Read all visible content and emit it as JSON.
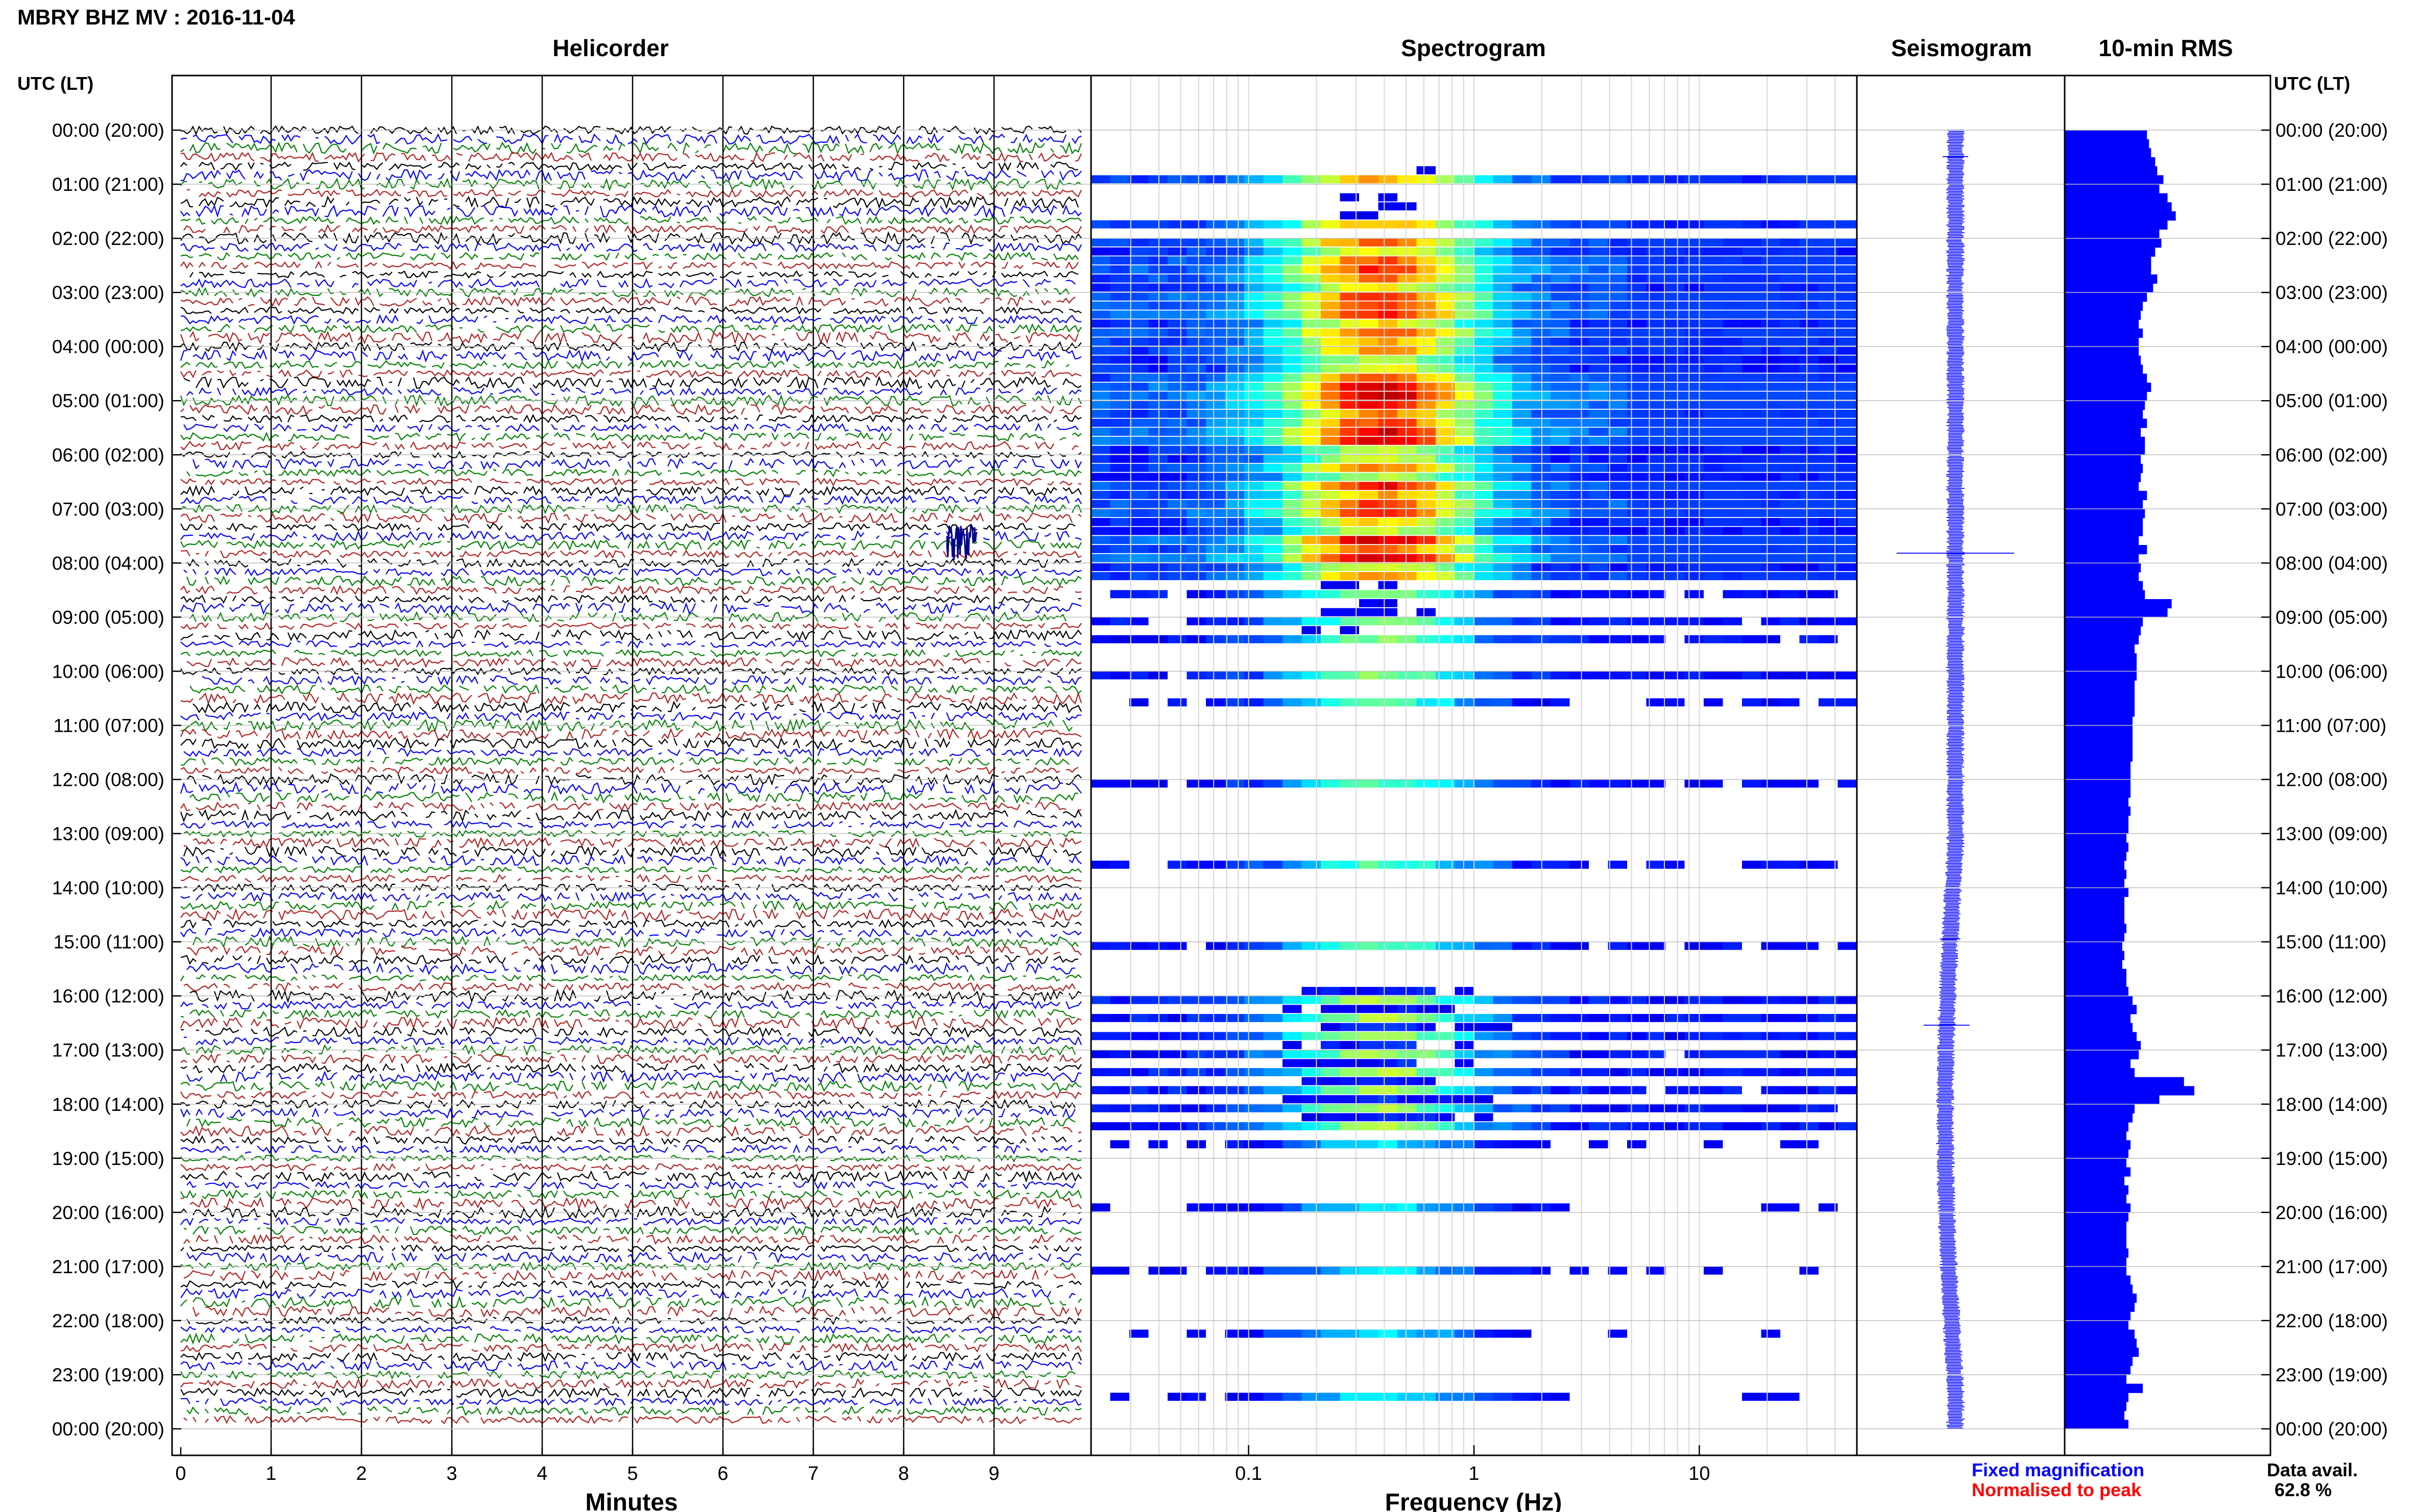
{
  "header": {
    "title": "MBRY BHZ MV : 2016-11-04"
  },
  "axes": {
    "left_header": "UTC (LT)",
    "right_header": "UTC (LT)"
  },
  "panels": {
    "helicorder": {
      "title": "Helicorder",
      "xlabel": "Minutes"
    },
    "spectrogram": {
      "title": "Spectrogram",
      "xlabel": "Frequency (Hz)"
    },
    "seismogram": {
      "title": "Seismogram"
    },
    "rms": {
      "title": "10-min RMS"
    }
  },
  "legend": {
    "fixed": "Fixed magnification",
    "normalised": "Normalised to peak",
    "fixed_color": "#0000ff",
    "normalised_color": "#ff0000"
  },
  "data_avail": {
    "label": "Data avail.",
    "value": "62.8 %"
  },
  "colors": {
    "trace_cycle": [
      "#000000",
      "#0000ff",
      "#008000",
      "#b22222"
    ],
    "rms_bar": "#0000ff"
  },
  "chart_data": [
    {
      "type": "line",
      "panel": "helicorder",
      "title": "Helicorder",
      "xlabel": "Minutes",
      "x_ticks": [
        0,
        1,
        2,
        3,
        4,
        5,
        6,
        7,
        8,
        9
      ],
      "xlim": [
        0,
        10
      ],
      "time_ticks": [
        "00:00 (20:00)",
        "01:00 (21:00)",
        "02:00 (22:00)",
        "03:00 (23:00)",
        "04:00 (00:00)",
        "05:00 (01:00)",
        "06:00 (02:00)",
        "07:00 (03:00)",
        "08:00 (04:00)",
        "09:00 (05:00)",
        "10:00 (06:00)",
        "11:00 (07:00)",
        "12:00 (08:00)",
        "13:00 (09:00)",
        "14:00 (10:00)",
        "15:00 (11:00)",
        "16:00 (12:00)",
        "17:00 (13:00)",
        "18:00 (14:00)",
        "19:00 (15:00)",
        "20:00 (16:00)",
        "21:00 (17:00)",
        "22:00 (18:00)",
        "23:00 (19:00)",
        "00:00 (20:00)"
      ],
      "rows": 144,
      "minutes_per_row": 10
    },
    {
      "type": "heatmap",
      "panel": "spectrogram",
      "title": "Spectrogram",
      "xlabel": "Frequency (Hz)",
      "x_scale": "log",
      "xlim": [
        0.02,
        50
      ],
      "x_ticks": [
        0.1,
        1,
        10
      ],
      "x_tick_labels": [
        "0.1",
        "1",
        "10"
      ]
    },
    {
      "type": "line",
      "panel": "seismogram",
      "title": "Seismogram"
    },
    {
      "type": "bar",
      "panel": "rms",
      "title": "10-min RMS",
      "orientation": "horizontal",
      "interval_minutes": 10,
      "values": [
        0.4,
        0.41,
        0.42,
        0.44,
        0.45,
        0.48,
        0.46,
        0.5,
        0.52,
        0.54,
        0.5,
        0.46,
        0.47,
        0.44,
        0.42,
        0.42,
        0.45,
        0.43,
        0.4,
        0.38,
        0.37,
        0.36,
        0.38,
        0.36,
        0.36,
        0.37,
        0.38,
        0.4,
        0.42,
        0.4,
        0.39,
        0.38,
        0.4,
        0.37,
        0.39,
        0.39,
        0.37,
        0.38,
        0.37,
        0.36,
        0.4,
        0.38,
        0.39,
        0.38,
        0.38,
        0.36,
        0.4,
        0.36,
        0.37,
        0.36,
        0.38,
        0.39,
        0.52,
        0.5,
        0.38,
        0.37,
        0.36,
        0.34,
        0.35,
        0.35,
        0.35,
        0.34,
        0.34,
        0.34,
        0.34,
        0.33,
        0.33,
        0.33,
        0.33,
        0.33,
        0.32,
        0.32,
        0.32,
        0.32,
        0.31,
        0.32,
        0.31,
        0.31,
        0.3,
        0.31,
        0.3,
        0.29,
        0.3,
        0.29,
        0.31,
        0.29,
        0.29,
        0.29,
        0.3,
        0.29,
        0.28,
        0.29,
        0.28,
        0.3,
        0.3,
        0.31,
        0.33,
        0.35,
        0.32,
        0.33,
        0.35,
        0.37,
        0.36,
        0.32,
        0.34,
        0.58,
        0.63,
        0.46,
        0.34,
        0.33,
        0.31,
        0.3,
        0.32,
        0.31,
        0.3,
        0.32,
        0.29,
        0.31,
        0.3,
        0.32,
        0.31,
        0.3,
        0.3,
        0.3,
        0.31,
        0.3,
        0.3,
        0.32,
        0.33,
        0.35,
        0.34,
        0.32,
        0.31,
        0.34,
        0.35,
        0.36,
        0.33,
        0.32,
        0.3,
        0.38,
        0.31,
        0.3,
        0.29,
        0.31
      ]
    }
  ]
}
